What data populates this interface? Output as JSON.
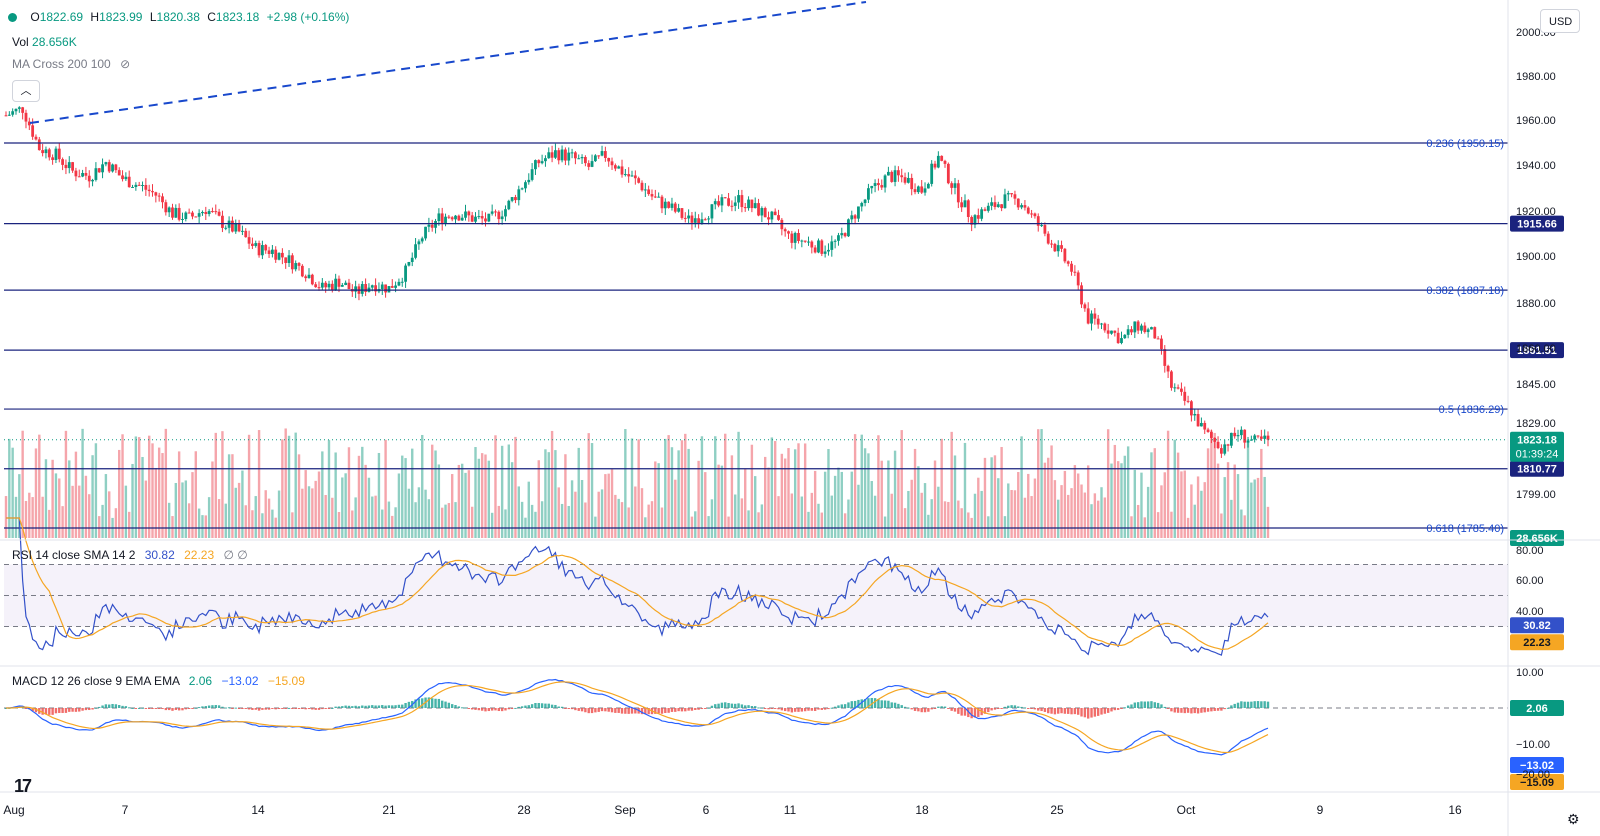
{
  "header": {
    "open_label": "O",
    "open": "1822.69",
    "high_label": "H",
    "high": "1823.99",
    "low_label": "L",
    "low": "1820.38",
    "close_label": "C",
    "close": "1823.18",
    "change": "+2.98 (+0.16%)"
  },
  "volume": {
    "label": "Vol",
    "value": "28.656K"
  },
  "ma_cross": {
    "label": "MA Cross 200 100"
  },
  "currency": "USD",
  "colors": {
    "up": "#089981",
    "down": "#f23645",
    "level": "#1a237e",
    "fib": "#1848cc",
    "rsi": "#3351c9",
    "rsi_ma": "#f5a623",
    "macd": "#2962ff",
    "signal": "#f5a623"
  },
  "rsi": {
    "label": "RSI 14 close SMA 14 2",
    "value": "30.82",
    "ma": "22.23",
    "extra": "∅ ∅"
  },
  "macd": {
    "label": "MACD 12 26 close 9 EMA EMA",
    "hist": "2.06",
    "macd": "−13.02",
    "signal": "−15.09"
  },
  "chart_data": {
    "type": "candlestick",
    "price_axis_ticks": [
      "2000.00",
      "1980.00",
      "1960.00",
      "1940.00",
      "1920.00",
      "1900.00",
      "1880.00",
      "1860.00",
      "1845.00",
      "1829.00",
      "1799.00"
    ],
    "rsi_axis_ticks": [
      "80.00",
      "60.00",
      "40.00"
    ],
    "macd_axis_ticks": [
      "10.00",
      "−10.00",
      "−20.00"
    ],
    "x_ticks": [
      "Aug",
      "7",
      "14",
      "21",
      "28",
      "Sep",
      "6",
      "11",
      "18",
      "25",
      "Oct",
      "9",
      "16"
    ],
    "levels": [
      {
        "label": "0.236 (1950.15)",
        "price": 1950.15,
        "style": "fib"
      },
      {
        "label": "1915.66",
        "price": 1915.66,
        "style": "box"
      },
      {
        "label": "0.382 (1887.18)",
        "price": 1887.18,
        "style": "fib"
      },
      {
        "label": "1861.51",
        "price": 1861.51,
        "style": "box"
      },
      {
        "label": "0.5 (1836.29)",
        "price": 1836.29,
        "style": "fib"
      },
      {
        "label": "1810.77",
        "price": 1810.77,
        "style": "box"
      },
      {
        "label": "0.618 (1785.40)",
        "price": 1785.4,
        "style": "fib"
      }
    ],
    "current_price": {
      "value": "1823.18",
      "countdown": "01:39:24",
      "price": 1823.18
    },
    "volume_badge": "28.656K",
    "rsi_bands": [
      70,
      50,
      30
    ],
    "close_path": [
      [
        0,
        1962
      ],
      [
        5,
        1965
      ],
      [
        10,
        1948
      ],
      [
        15,
        1945
      ],
      [
        20,
        1938
      ],
      [
        25,
        1936
      ],
      [
        30,
        1942
      ],
      [
        35,
        1935
      ],
      [
        40,
        1932
      ],
      [
        45,
        1928
      ],
      [
        50,
        1920
      ],
      [
        55,
        1918
      ],
      [
        60,
        1922
      ],
      [
        65,
        1916
      ],
      [
        70,
        1912
      ],
      [
        75,
        1905
      ],
      [
        80,
        1904
      ],
      [
        85,
        1900
      ],
      [
        90,
        1895
      ],
      [
        95,
        1888
      ],
      [
        100,
        1891
      ],
      [
        105,
        1886
      ],
      [
        110,
        1890
      ],
      [
        115,
        1888
      ],
      [
        120,
        1895
      ],
      [
        125,
        1910
      ],
      [
        130,
        1918
      ],
      [
        135,
        1920
      ],
      [
        140,
        1918
      ],
      [
        145,
        1917
      ],
      [
        150,
        1922
      ],
      [
        155,
        1932
      ],
      [
        160,
        1942
      ],
      [
        165,
        1946
      ],
      [
        170,
        1944
      ],
      [
        175,
        1940
      ],
      [
        180,
        1945
      ],
      [
        185,
        1938
      ],
      [
        190,
        1933
      ],
      [
        195,
        1926
      ],
      [
        200,
        1922
      ],
      [
        205,
        1917
      ],
      [
        210,
        1920
      ],
      [
        215,
        1924
      ],
      [
        220,
        1926
      ],
      [
        225,
        1922
      ],
      [
        230,
        1918
      ],
      [
        235,
        1910
      ],
      [
        240,
        1908
      ],
      [
        245,
        1905
      ],
      [
        250,
        1908
      ],
      [
        255,
        1920
      ],
      [
        260,
        1930
      ],
      [
        265,
        1936
      ],
      [
        270,
        1935
      ],
      [
        275,
        1930
      ],
      [
        280,
        1944
      ],
      [
        285,
        1930
      ],
      [
        290,
        1918
      ],
      [
        295,
        1922
      ],
      [
        300,
        1926
      ],
      [
        305,
        1925
      ],
      [
        310,
        1915
      ],
      [
        315,
        1906
      ],
      [
        320,
        1896
      ],
      [
        325,
        1875
      ],
      [
        330,
        1872
      ],
      [
        335,
        1866
      ],
      [
        340,
        1872
      ],
      [
        345,
        1868
      ],
      [
        350,
        1846
      ],
      [
        355,
        1838
      ],
      [
        360,
        1826
      ],
      [
        365,
        1820
      ],
      [
        370,
        1826
      ],
      [
        375,
        1822
      ],
      [
        380,
        1823.18
      ]
    ],
    "candle_count": 380
  }
}
